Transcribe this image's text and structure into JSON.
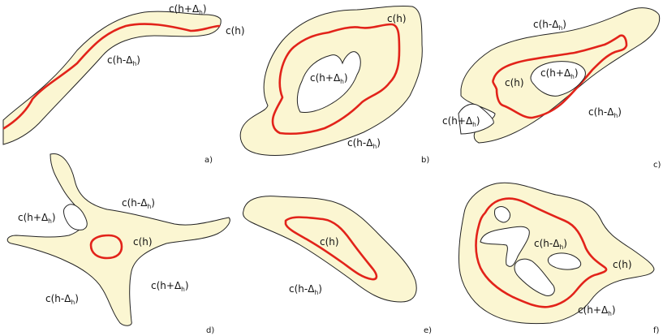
{
  "colors": {
    "zone_fill": "#fbf6d2",
    "contour": "#e2231a",
    "outline": "#222222",
    "background": "#ffffff"
  },
  "labels": {
    "c_h": "c(h)",
    "c_minus": "c(h-Δ",
    "c_plus": "c(h+Δ",
    "sub_h": "h",
    "close": ")"
  },
  "panels": {
    "a": "a)",
    "b": "b)",
    "c": "c)",
    "d": "d)",
    "e": "e)",
    "f": "f)"
  }
}
